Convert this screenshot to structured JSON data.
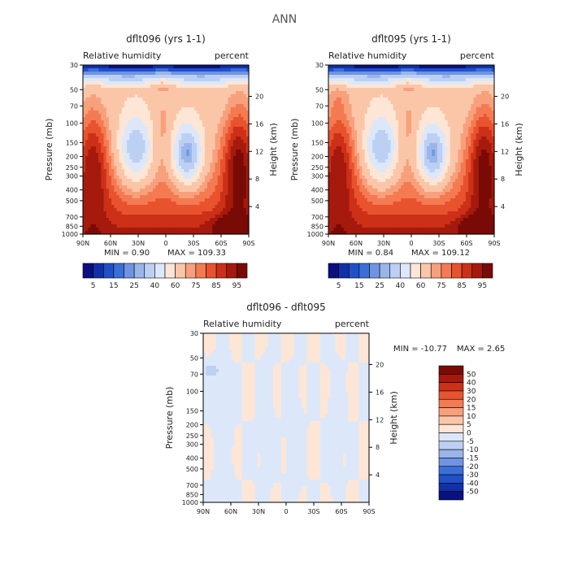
{
  "figure": {
    "title": "ANN"
  },
  "chart_data": [
    {
      "type": "heatmap",
      "title": "dflt096 (yrs 1-1)",
      "subtitle_left": "Relative humidity",
      "subtitle_right": "percent",
      "xlabel": "",
      "ylabel": "Pressure (mb)",
      "ylabel_right": "Height (km)",
      "x_ticks": [
        "90N",
        "60N",
        "30N",
        "0",
        "30S",
        "60S",
        "90S"
      ],
      "y_ticks": [
        1000,
        850,
        700,
        500,
        400,
        300,
        250,
        200,
        150,
        100,
        70,
        50,
        30
      ],
      "height_ticks": [
        4,
        8,
        12,
        16,
        20
      ],
      "min_label": "MIN =    0.90",
      "max_label": "MAX = 109.33",
      "min": 0.9,
      "max": 109.33,
      "colorbar_labels": [
        "5",
        "15",
        "25",
        "40",
        "60",
        "75",
        "85",
        "95"
      ],
      "contour_levels": [
        5,
        10,
        15,
        20,
        25,
        30,
        40,
        50,
        60,
        70,
        75,
        80,
        85,
        90,
        95
      ]
    },
    {
      "type": "heatmap",
      "title": "dflt095 (yrs 1-1)",
      "subtitle_left": "Relative humidity",
      "subtitle_right": "percent",
      "xlabel": "",
      "ylabel": "Pressure (mb)",
      "ylabel_right": "Height (km)",
      "x_ticks": [
        "90N",
        "60N",
        "30N",
        "0",
        "30S",
        "60S",
        "90S"
      ],
      "y_ticks": [
        1000,
        850,
        700,
        500,
        400,
        300,
        250,
        200,
        150,
        100,
        70,
        50,
        30
      ],
      "height_ticks": [
        4,
        8,
        12,
        16,
        20
      ],
      "min_label": "MIN =    0.84",
      "max_label": "MAX = 109.12",
      "min": 0.84,
      "max": 109.12,
      "colorbar_labels": [
        "5",
        "15",
        "25",
        "40",
        "60",
        "75",
        "85",
        "95"
      ],
      "contour_levels": [
        5,
        10,
        15,
        20,
        25,
        30,
        40,
        50,
        60,
        70,
        75,
        80,
        85,
        90,
        95
      ]
    },
    {
      "type": "heatmap",
      "title": "dflt096 - dflt095",
      "subtitle_left": "Relative humidity",
      "subtitle_right": "percent",
      "xlabel": "",
      "ylabel": "Pressure (mb)",
      "ylabel_right": "Height (km)",
      "x_ticks": [
        "90N",
        "60N",
        "30N",
        "0",
        "30S",
        "60S",
        "90S"
      ],
      "y_ticks": [
        1000,
        850,
        700,
        500,
        400,
        300,
        250,
        200,
        150,
        100,
        70,
        50,
        30
      ],
      "height_ticks": [
        4,
        8,
        12,
        16,
        20
      ],
      "min_label": "MIN = -10.77",
      "max_label": "MAX =    2.65",
      "min": -10.77,
      "max": 2.65,
      "colorbar_labels": [
        "50",
        "40",
        "30",
        "20",
        "15",
        "10",
        "5",
        "0",
        "-5",
        "-10",
        "-15",
        "-20",
        "-30",
        "-40",
        "-50"
      ],
      "contour_levels": [
        -50,
        -40,
        -30,
        -20,
        -15,
        -10,
        -5,
        0,
        5,
        10,
        15,
        20,
        30,
        40,
        50
      ]
    }
  ],
  "colors": {
    "full_scale": [
      "#0a1080",
      "#1030a8",
      "#2050c8",
      "#3b6fd8",
      "#6f94e3",
      "#9ab5ea",
      "#bcd0f3",
      "#dce8fa",
      "#fde6d6",
      "#fbc6a8",
      "#f8a07c",
      "#f47a52",
      "#e8532e",
      "#cc3017",
      "#a51a0c",
      "#7a0a06"
    ],
    "diff_scale": [
      "#7a0a06",
      "#a51a0c",
      "#cc3017",
      "#e8532e",
      "#f47a52",
      "#f8a07c",
      "#fbc6a8",
      "#fde6d6",
      "#dce8fa",
      "#bcd0f3",
      "#9ab5ea",
      "#6f94e3",
      "#3b6fd8",
      "#2050c8",
      "#1030a8",
      "#0a1080"
    ],
    "frame": "#000000"
  }
}
